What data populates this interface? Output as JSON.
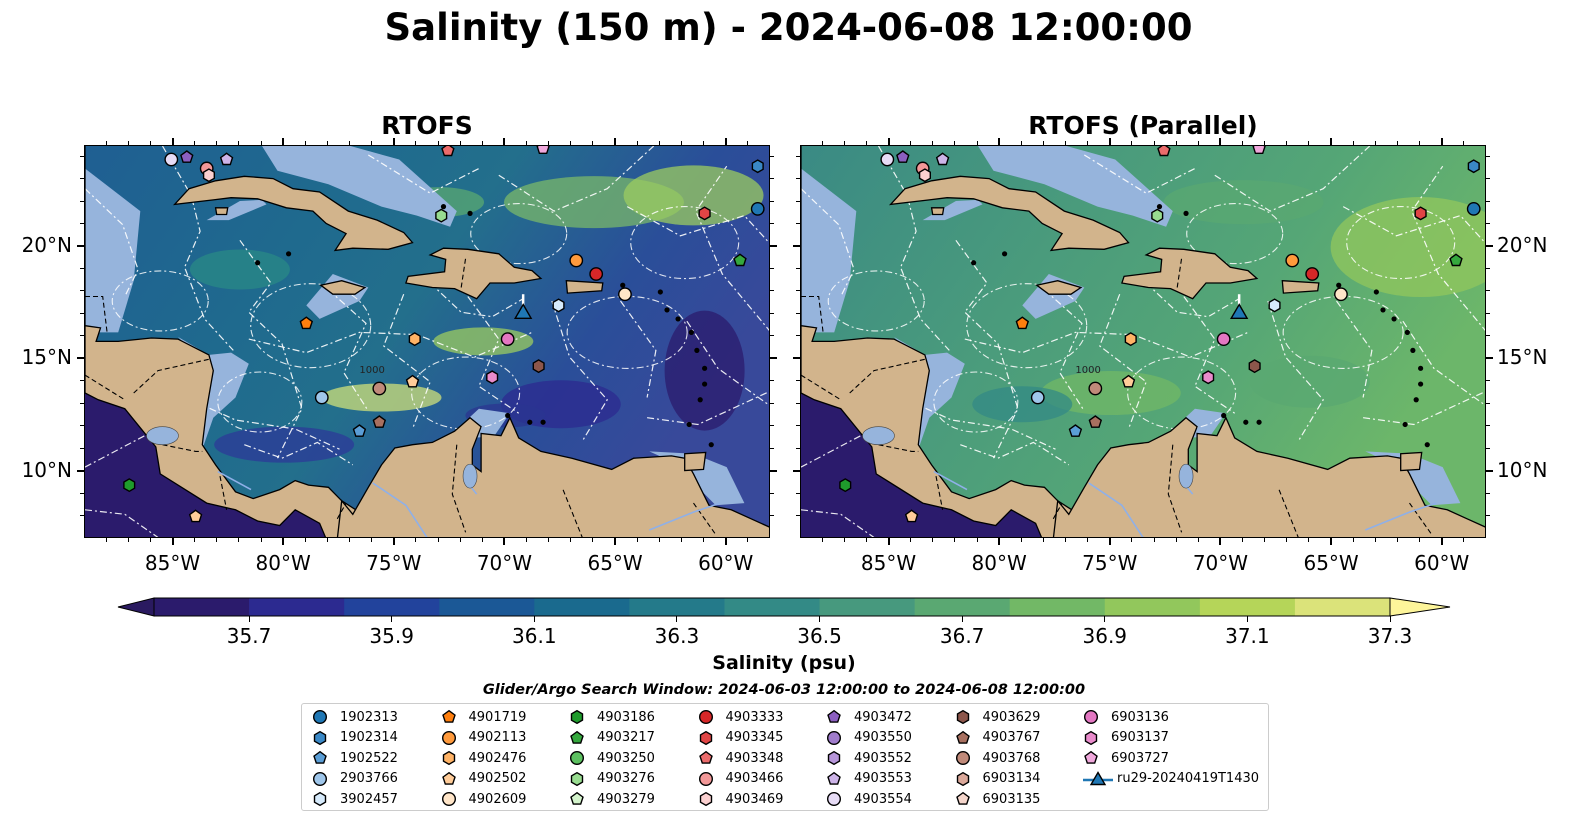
{
  "title": "Salinity (150 m) - 2024-06-08 12:00:00",
  "panels": [
    {
      "title": "RTOFS",
      "variant": "main"
    },
    {
      "title": "RTOFS (Parallel)",
      "variant": "parallel"
    }
  ],
  "map": {
    "lon_range": [
      -89,
      -58
    ],
    "lat_range": [
      7,
      24.5
    ],
    "lon_ticks": [
      "85°W",
      "80°W",
      "75°W",
      "70°W",
      "65°W",
      "60°W"
    ],
    "lat_ticks": [
      "20°N",
      "15°N",
      "10°N"
    ],
    "land_color": "#d2b48c",
    "shelf_color": "#96b4dc",
    "contour_label": "1000"
  },
  "colorbar": {
    "label": "Salinity (psu)",
    "ticks": [
      "35.7",
      "35.9",
      "36.1",
      "36.3",
      "36.5",
      "36.7",
      "36.9",
      "37.1",
      "37.3"
    ],
    "colors": [
      "#2b1b6c",
      "#2c2a90",
      "#22439c",
      "#1b5896",
      "#1a6a8e",
      "#247a8a",
      "#338a86",
      "#47997e",
      "#5aa872",
      "#72b866",
      "#92c75c",
      "#b5d559",
      "#dbe37a"
    ],
    "extend_low": "#2a1a60",
    "extend_high": "#fdf59a"
  },
  "search_window": "Glider/Argo Search Window: 2024-06-03 12:00:00 to 2024-06-08 12:00:00",
  "legend": [
    {
      "label": "1902313",
      "color": "#1f77b4",
      "shape": "circle"
    },
    {
      "label": "1902314",
      "color": "#3a88c6",
      "shape": "hexagon"
    },
    {
      "label": "1902522",
      "color": "#5b9ed6",
      "shape": "pentagon"
    },
    {
      "label": "2903766",
      "color": "#9fc6ea",
      "shape": "circle"
    },
    {
      "label": "3902457",
      "color": "#d6eafb",
      "shape": "hexagon"
    },
    {
      "label": "4901719",
      "color": "#ff7f0e",
      "shape": "pentagon"
    },
    {
      "label": "4902113",
      "color": "#ff9a3c",
      "shape": "circle"
    },
    {
      "label": "4902476",
      "color": "#ffb366",
      "shape": "hexagon"
    },
    {
      "label": "4902502",
      "color": "#ffcc99",
      "shape": "pentagon"
    },
    {
      "label": "4902609",
      "color": "#ffe5c8",
      "shape": "circle"
    },
    {
      "label": "4903186",
      "color": "#1f9b2c",
      "shape": "hexagon"
    },
    {
      "label": "4903217",
      "color": "#35a83e",
      "shape": "pentagon"
    },
    {
      "label": "4903250",
      "color": "#5cc060",
      "shape": "circle"
    },
    {
      "label": "4903276",
      "color": "#98dc90",
      "shape": "hexagon"
    },
    {
      "label": "4903279",
      "color": "#d4f4cc",
      "shape": "pentagon"
    },
    {
      "label": "4903333",
      "color": "#d62728",
      "shape": "circle"
    },
    {
      "label": "4903345",
      "color": "#e04545",
      "shape": "hexagon"
    },
    {
      "label": "4903348",
      "color": "#ea6b6b",
      "shape": "pentagon"
    },
    {
      "label": "4903466",
      "color": "#f29898",
      "shape": "circle"
    },
    {
      "label": "4903469",
      "color": "#fbd0d0",
      "shape": "hexagon"
    },
    {
      "label": "4903472",
      "color": "#8c5fc0",
      "shape": "pentagon"
    },
    {
      "label": "4903550",
      "color": "#a07ccc",
      "shape": "circle"
    },
    {
      "label": "4903552",
      "color": "#b796da",
      "shape": "hexagon"
    },
    {
      "label": "4903553",
      "color": "#cdb4e8",
      "shape": "pentagon"
    },
    {
      "label": "4903554",
      "color": "#e7dcf6",
      "shape": "circle"
    },
    {
      "label": "4903629",
      "color": "#8c564b",
      "shape": "hexagon"
    },
    {
      "label": "4903767",
      "color": "#a87060",
      "shape": "pentagon"
    },
    {
      "label": "4903768",
      "color": "#c08a7a",
      "shape": "circle"
    },
    {
      "label": "6903134",
      "color": "#dba89a",
      "shape": "hexagon"
    },
    {
      "label": "6903135",
      "color": "#f5d6cc",
      "shape": "pentagon"
    },
    {
      "label": "6903136",
      "color": "#e377c2",
      "shape": "circle"
    },
    {
      "label": "6903137",
      "color": "#e98bcc",
      "shape": "hexagon"
    },
    {
      "label": "6903727",
      "color": "#f0a8dc",
      "shape": "pentagon"
    },
    {
      "label": "ru29-20240419T1430",
      "color": "#1f77b4",
      "shape": "triangle-line"
    }
  ],
  "markers": [
    {
      "lon": -85.1,
      "lat": 23.9,
      "color": "#e7dcf6",
      "shape": "circle"
    },
    {
      "lon": -84.4,
      "lat": 24.0,
      "color": "#8c5fc0",
      "shape": "pentagon"
    },
    {
      "lon": -82.6,
      "lat": 23.9,
      "color": "#cdb4e8",
      "shape": "pentagon"
    },
    {
      "lon": -83.5,
      "lat": 23.5,
      "color": "#f29898",
      "shape": "circle"
    },
    {
      "lon": -83.4,
      "lat": 23.2,
      "color": "#fbd0d0",
      "shape": "hexagon"
    },
    {
      "lon": -72.6,
      "lat": 24.3,
      "color": "#ea6b6b",
      "shape": "pentagon"
    },
    {
      "lon": -68.3,
      "lat": 24.4,
      "color": "#f0a8dc",
      "shape": "pentagon"
    },
    {
      "lon": -58.6,
      "lat": 23.6,
      "color": "#3a88c6",
      "shape": "hexagon"
    },
    {
      "lon": -58.6,
      "lat": 21.7,
      "color": "#1f77b4",
      "shape": "circle"
    },
    {
      "lon": -61.0,
      "lat": 21.5,
      "color": "#e04545",
      "shape": "hexagon"
    },
    {
      "lon": -72.9,
      "lat": 21.4,
      "color": "#98dc90",
      "shape": "hexagon"
    },
    {
      "lon": -59.4,
      "lat": 19.4,
      "color": "#35a83e",
      "shape": "pentagon"
    },
    {
      "lon": -66.8,
      "lat": 19.4,
      "color": "#ff9a3c",
      "shape": "circle"
    },
    {
      "lon": -65.9,
      "lat": 18.8,
      "color": "#d62728",
      "shape": "circle"
    },
    {
      "lon": -64.6,
      "lat": 17.9,
      "color": "#ffe5c8",
      "shape": "circle"
    },
    {
      "lon": -67.6,
      "lat": 17.4,
      "color": "#d6eafb",
      "shape": "hexagon"
    },
    {
      "lon": -79.0,
      "lat": 16.6,
      "color": "#ff7f0e",
      "shape": "pentagon"
    },
    {
      "lon": -74.1,
      "lat": 15.9,
      "color": "#ffb366",
      "shape": "hexagon"
    },
    {
      "lon": -69.9,
      "lat": 15.9,
      "color": "#e377c2",
      "shape": "circle"
    },
    {
      "lon": -68.5,
      "lat": 14.7,
      "color": "#8c564b",
      "shape": "hexagon"
    },
    {
      "lon": -74.2,
      "lat": 14.0,
      "color": "#ffcc99",
      "shape": "pentagon"
    },
    {
      "lon": -70.6,
      "lat": 14.2,
      "color": "#e98bcc",
      "shape": "hexagon"
    },
    {
      "lon": -75.7,
      "lat": 13.7,
      "color": "#c08a7a",
      "shape": "circle"
    },
    {
      "lon": -78.3,
      "lat": 13.3,
      "color": "#9fc6ea",
      "shape": "circle"
    },
    {
      "lon": -75.7,
      "lat": 12.2,
      "color": "#a87060",
      "shape": "pentagon"
    },
    {
      "lon": -76.6,
      "lat": 11.8,
      "color": "#5b9ed6",
      "shape": "pentagon"
    },
    {
      "lon": -87.0,
      "lat": 9.4,
      "color": "#1f9b2c",
      "shape": "hexagon"
    },
    {
      "lon": -84.0,
      "lat": 8.0,
      "color": "#ffcc99",
      "shape": "pentagon"
    }
  ],
  "glider": {
    "lon": -69.2,
    "lat": 17.1,
    "color": "#1f77b4"
  }
}
